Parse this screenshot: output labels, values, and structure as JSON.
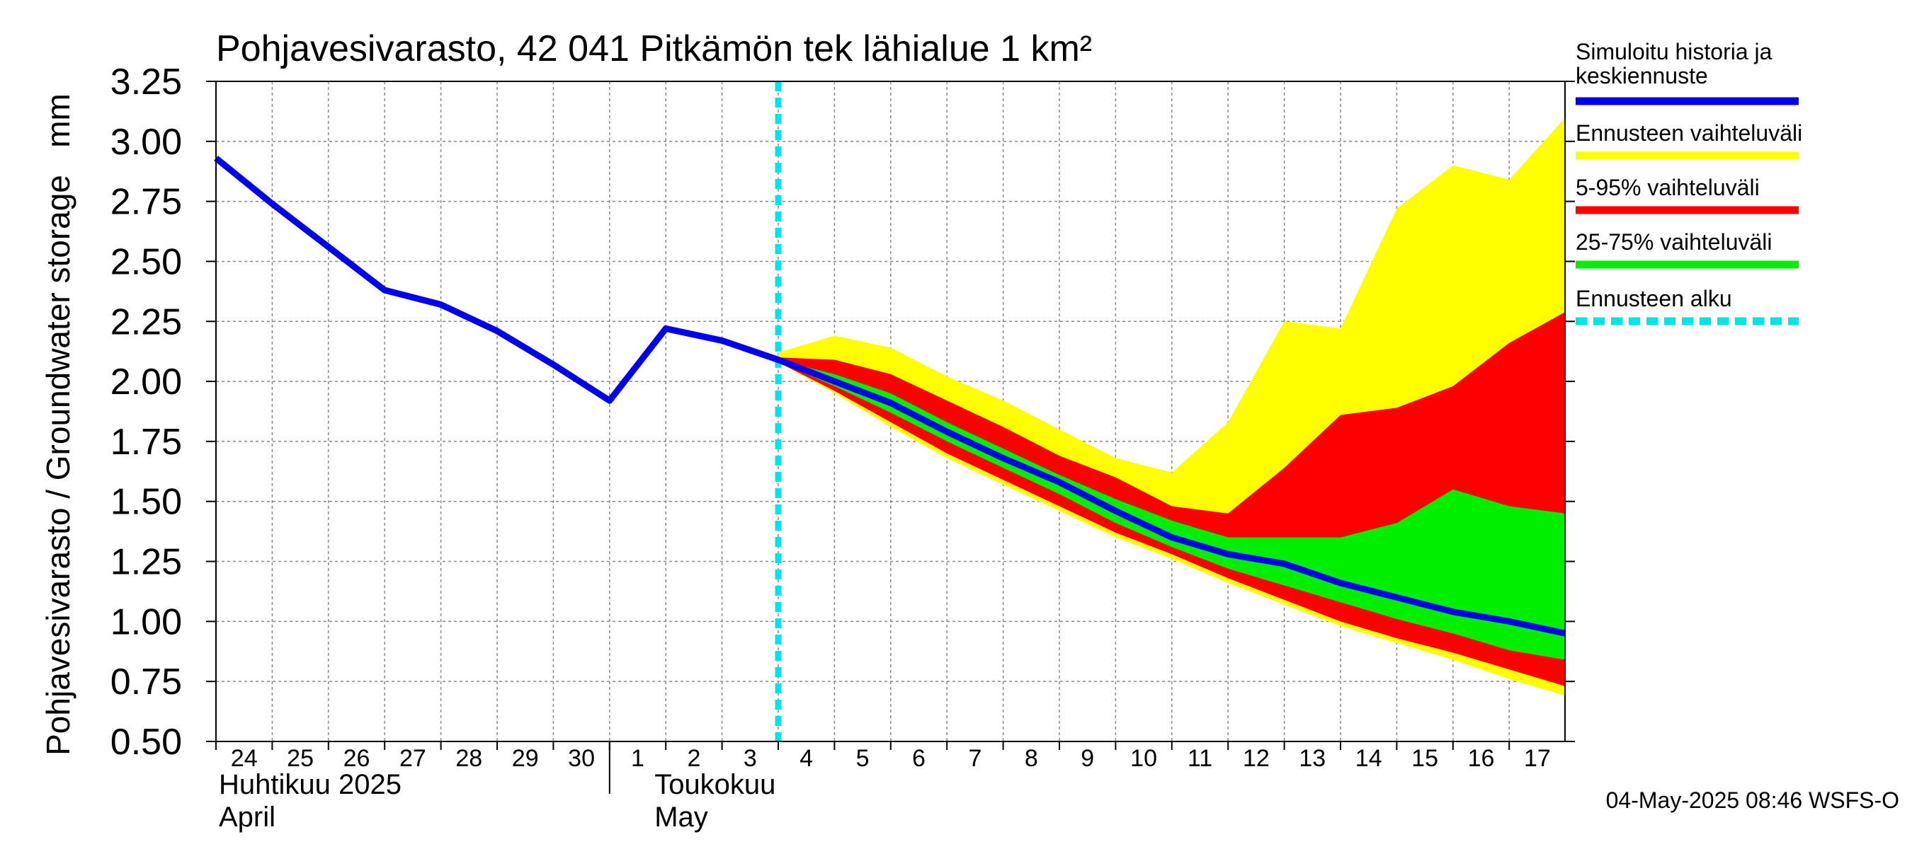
{
  "chart_data": {
    "type": "area",
    "title": "Pohjavesivarasto, 42 041 Pitkämön tek lähialue 1 km²",
    "ylabel": "Pohjavesivarasto / Groundwater storage   mm",
    "ylim": [
      0.5,
      3.25
    ],
    "yticks": [
      "0.50",
      "0.75",
      "1.00",
      "1.25",
      "1.50",
      "1.75",
      "2.00",
      "2.25",
      "2.50",
      "2.75",
      "3.00",
      "3.25"
    ],
    "grid": true,
    "x": [
      "24",
      "25",
      "26",
      "27",
      "28",
      "29",
      "30",
      "1",
      "2",
      "3",
      "4",
      "5",
      "6",
      "7",
      "8",
      "9",
      "10",
      "11",
      "12",
      "13",
      "14",
      "15",
      "16",
      "17"
    ],
    "month_labels": [
      {
        "fi": "Huhtikuu  2025",
        "en": "April"
      },
      {
        "fi": "Toukokuu",
        "en": "May"
      }
    ],
    "forecast_start": "4",
    "series": [
      {
        "name": "Simuloitu historia ja keskiennuste",
        "color": "#0000ee",
        "x": [
          "24",
          "25",
          "26",
          "27",
          "28",
          "29",
          "30",
          "1",
          "2",
          "3",
          "4",
          "5",
          "6",
          "7",
          "8",
          "9",
          "10",
          "11",
          "12",
          "13",
          "14",
          "15",
          "16",
          "17",
          "18"
        ],
        "values": [
          2.93,
          2.74,
          2.56,
          2.38,
          2.32,
          2.21,
          2.07,
          1.92,
          2.22,
          2.17,
          2.09,
          2.0,
          1.91,
          1.79,
          1.68,
          1.58,
          1.46,
          1.35,
          1.28,
          1.24,
          1.16,
          1.1,
          1.04,
          1.0,
          0.95
        ]
      },
      {
        "name": "Ennusteen vaihteluväli",
        "color": "#ffff00",
        "x": [
          "4",
          "5",
          "6",
          "7",
          "8",
          "9",
          "10",
          "11",
          "12",
          "13",
          "14",
          "15",
          "16",
          "17",
          "18"
        ],
        "upper": [
          2.12,
          2.19,
          2.14,
          2.02,
          1.92,
          1.8,
          1.68,
          1.62,
          1.83,
          2.25,
          2.22,
          2.72,
          2.9,
          2.84,
          3.1
        ],
        "lower": [
          2.08,
          1.95,
          1.81,
          1.68,
          1.57,
          1.46,
          1.35,
          1.26,
          1.16,
          1.07,
          0.98,
          0.91,
          0.84,
          0.76,
          0.69
        ]
      },
      {
        "name": "5-95% vaihteluväli",
        "color": "#ff0000",
        "x": [
          "4",
          "5",
          "6",
          "7",
          "8",
          "9",
          "10",
          "11",
          "12",
          "13",
          "14",
          "15",
          "16",
          "17",
          "18"
        ],
        "upper": [
          2.1,
          2.09,
          2.03,
          1.92,
          1.81,
          1.69,
          1.6,
          1.48,
          1.45,
          1.64,
          1.86,
          1.89,
          1.98,
          2.16,
          2.29
        ],
        "lower": [
          2.08,
          1.96,
          1.83,
          1.7,
          1.59,
          1.48,
          1.37,
          1.28,
          1.18,
          1.09,
          1.0,
          0.93,
          0.87,
          0.8,
          0.73
        ]
      },
      {
        "name": "25-75% vaihteluväli",
        "color": "#00ee00",
        "x": [
          "4",
          "5",
          "6",
          "7",
          "8",
          "9",
          "10",
          "11",
          "12",
          "13",
          "14",
          "15",
          "16",
          "17",
          "18"
        ],
        "upper": [
          2.09,
          2.03,
          1.95,
          1.83,
          1.72,
          1.61,
          1.51,
          1.42,
          1.35,
          1.35,
          1.35,
          1.41,
          1.55,
          1.48,
          1.45
        ],
        "lower": [
          2.08,
          1.98,
          1.87,
          1.75,
          1.64,
          1.53,
          1.41,
          1.31,
          1.22,
          1.15,
          1.08,
          1.01,
          0.95,
          0.88,
          0.84
        ]
      }
    ],
    "legend": [
      {
        "label": "Simuloitu historia ja keskiennuste",
        "color": "#0000ee",
        "style": "solid"
      },
      {
        "label": "Ennusteen vaihteluväli",
        "color": "#ffff00",
        "style": "solid"
      },
      {
        "label": "5-95% vaihteluväli",
        "color": "#ff0000",
        "style": "solid"
      },
      {
        "label": "25-75% vaihteluväli",
        "color": "#00ee00",
        "style": "solid"
      },
      {
        "label": "Ennusteen alku",
        "color": "#00e5e5",
        "style": "dashed"
      }
    ],
    "legend_position": "right",
    "footer": "04-May-2025 08:46 WSFS-O"
  }
}
